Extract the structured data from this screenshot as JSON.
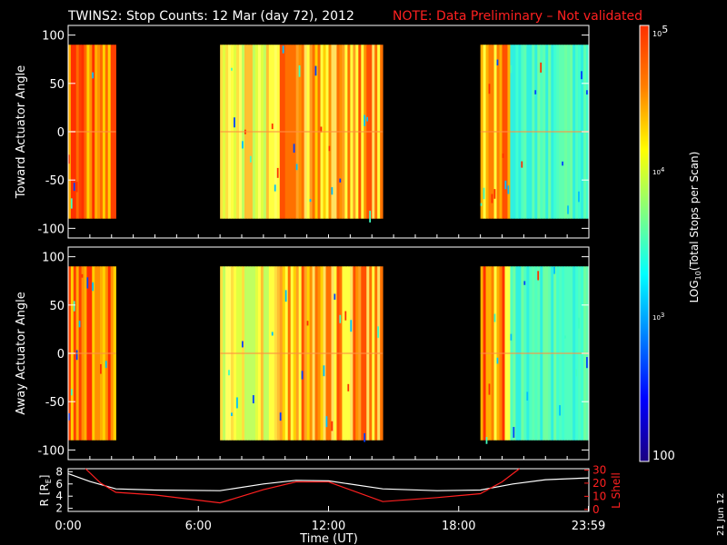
{
  "title_main": "TWINS2: Stop Counts: 12 Mar (day  72), 2012",
  "title_note": "NOTE: Data Preliminary – Not validated",
  "date_stamp": "21 Jun 12",
  "colors": {
    "note": "#ff2020",
    "axes": "#ffffff",
    "lshell_line": "#ff2020",
    "r_line": "#ffffff",
    "background": "#000000"
  },
  "chart_data": [
    {
      "type": "heatmap",
      "panel": "top",
      "ylabel": "Toward Actuator Angle",
      "y_ticks": [
        "100",
        "50",
        "0",
        "-50",
        "-100"
      ],
      "y_tick_values": [
        100,
        50,
        0,
        -50,
        -100
      ],
      "ylim": [
        -110,
        110
      ],
      "xlim": [
        0,
        24
      ],
      "data_angle_range": [
        -90,
        90
      ],
      "data_intervals_hours": [
        [
          0,
          2.2
        ],
        [
          7.0,
          14.5
        ],
        [
          19.0,
          24.0
        ]
      ]
    },
    {
      "type": "heatmap",
      "panel": "middle",
      "ylabel": "Away Actuator Angle",
      "y_ticks": [
        "100",
        "50",
        "0",
        "-50",
        "-100"
      ],
      "y_tick_values": [
        100,
        50,
        0,
        -50,
        -100
      ],
      "ylim": [
        -110,
        110
      ],
      "xlim": [
        0,
        24
      ],
      "data_angle_range": [
        -90,
        90
      ],
      "data_intervals_hours": [
        [
          0,
          2.2
        ],
        [
          7.0,
          14.5
        ],
        [
          19.0,
          24.0
        ]
      ]
    },
    {
      "type": "line",
      "panel": "bottom",
      "xlabel": "Time (UT)",
      "x_ticks": [
        "0:00",
        "6:00",
        "12:00",
        "18:00",
        "23:59"
      ],
      "x_tick_values": [
        0,
        6,
        12,
        18,
        23.98
      ],
      "left_ylabel": "R [R",
      "left_ylabel_sub": "E",
      "left_ylabel_end": "]",
      "left_ticks": [
        "8",
        "6",
        "4",
        "2"
      ],
      "left_tick_values": [
        8,
        6,
        4,
        2
      ],
      "left_ylim": [
        1.5,
        8.5
      ],
      "right_ylabel": "L Shell",
      "right_ticks": [
        "30",
        "20",
        "10",
        "0"
      ],
      "right_tick_values": [
        30,
        20,
        10,
        0
      ],
      "right_ylim": [
        -1.5,
        31
      ],
      "series": [
        {
          "axis": "left",
          "x": [
            0,
            1,
            2.2,
            4,
            7,
            9,
            10.5,
            12,
            14.5,
            17,
            19,
            20.5,
            22,
            24
          ],
          "y": [
            7.7,
            6.4,
            5.2,
            5.0,
            4.9,
            6.0,
            6.6,
            6.5,
            5.2,
            4.9,
            5.0,
            6.0,
            6.7,
            7.0
          ]
        },
        {
          "axis": "right",
          "x": [
            0.8,
            1.5,
            2.2,
            4,
            7,
            9,
            10.5,
            12,
            14.5,
            17,
            19,
            20,
            20.8
          ],
          "y": [
            31,
            20,
            13,
            11,
            5,
            15,
            21,
            21,
            6,
            9,
            12,
            21,
            31
          ]
        }
      ]
    }
  ],
  "colorbar": {
    "label": "LOG",
    "label_sub": "10",
    "label_rest": "(Total Stops per Scan)",
    "tick_labels": [
      "10",
      "5",
      "10",
      "4",
      "10",
      "3",
      "100"
    ],
    "tick_values": [
      100000,
      10000,
      1000,
      100
    ],
    "range": [
      100,
      100000
    ],
    "colors": [
      "#1a0080",
      "#0000ff",
      "#0080ff",
      "#00ffff",
      "#80ff80",
      "#ffff00",
      "#ff8000",
      "#ff3000"
    ]
  }
}
